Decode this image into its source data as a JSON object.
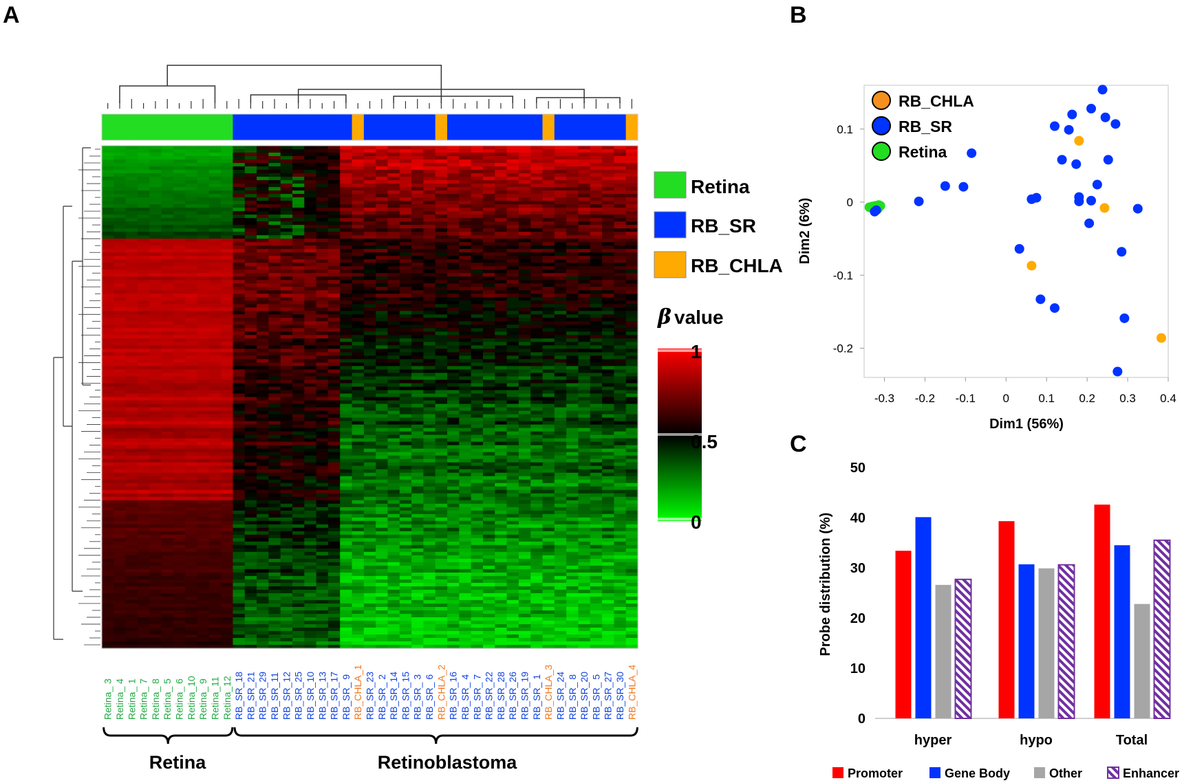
{
  "colors": {
    "retina": "#22dd22",
    "rb_sr": "#0033ff",
    "rb_chla": "#ffaa00",
    "rb_chla_label": "#ee7722",
    "retina_label": "#22aa44",
    "rb_sr_label": "#1144dd",
    "promoter": "#ff0000",
    "gene_body": "#0033ff",
    "other": "#a6a6a6",
    "enhancer": "#7030a0"
  },
  "panels": {
    "a": "A",
    "b": "B",
    "c": "C"
  },
  "chart_data": [
    {
      "panel": "A",
      "type": "heatmap",
      "title": "",
      "samples": [
        {
          "name": "Retina_ 3",
          "group": "Retina"
        },
        {
          "name": "Retina_ 4",
          "group": "Retina"
        },
        {
          "name": "Retina_ 1",
          "group": "Retina"
        },
        {
          "name": "Retina_ 7",
          "group": "Retina"
        },
        {
          "name": "Retina_ 8",
          "group": "Retina"
        },
        {
          "name": "Retina_ 5",
          "group": "Retina"
        },
        {
          "name": "Retina_ 6",
          "group": "Retina"
        },
        {
          "name": "Retina_10",
          "group": "Retina"
        },
        {
          "name": "Retina_ 9",
          "group": "Retina"
        },
        {
          "name": "Retina_11",
          "group": "Retina"
        },
        {
          "name": "Retina_12",
          "group": "Retina"
        },
        {
          "name": "RB_SR_18",
          "group": "RB_SR"
        },
        {
          "name": "RB_SR_21",
          "group": "RB_SR"
        },
        {
          "name": "RB_SR_29",
          "group": "RB_SR"
        },
        {
          "name": "RB_SR_11",
          "group": "RB_SR"
        },
        {
          "name": "RB_SR_12",
          "group": "RB_SR"
        },
        {
          "name": "RB_SR_25",
          "group": "RB_SR"
        },
        {
          "name": "RB_SR_10",
          "group": "RB_SR"
        },
        {
          "name": "RB_SR_13",
          "group": "RB_SR"
        },
        {
          "name": "RB_SR_17",
          "group": "RB_SR"
        },
        {
          "name": "RB_SR_ 9",
          "group": "RB_SR"
        },
        {
          "name": "RB_CHLA_1",
          "group": "RB_CHLA"
        },
        {
          "name": "RB_SR_23",
          "group": "RB_SR"
        },
        {
          "name": "RB_SR_ 2",
          "group": "RB_SR"
        },
        {
          "name": "RB_SR_14",
          "group": "RB_SR"
        },
        {
          "name": "RB_SR_15",
          "group": "RB_SR"
        },
        {
          "name": "RB_SR_ 3",
          "group": "RB_SR"
        },
        {
          "name": "RB_SR_ 6",
          "group": "RB_SR"
        },
        {
          "name": "RB_CHLA_2",
          "group": "RB_CHLA"
        },
        {
          "name": "RB_SR_16",
          "group": "RB_SR"
        },
        {
          "name": "RB_SR_ 4",
          "group": "RB_SR"
        },
        {
          "name": "RB_SR_ 7",
          "group": "RB_SR"
        },
        {
          "name": "RB_SR_22",
          "group": "RB_SR"
        },
        {
          "name": "RB_SR_28",
          "group": "RB_SR"
        },
        {
          "name": "RB_SR_26",
          "group": "RB_SR"
        },
        {
          "name": "RB_SR_19",
          "group": "RB_SR"
        },
        {
          "name": "RB_SR_ 1",
          "group": "RB_SR"
        },
        {
          "name": "RB_CHLA_3",
          "group": "RB_CHLA"
        },
        {
          "name": "RB_SR_24",
          "group": "RB_SR"
        },
        {
          "name": "RB_SR_ 8",
          "group": "RB_SR"
        },
        {
          "name": "RB_SR_20",
          "group": "RB_SR"
        },
        {
          "name": "RB_SR_ 5",
          "group": "RB_SR"
        },
        {
          "name": "RB_SR_27",
          "group": "RB_SR"
        },
        {
          "name": "RB_SR_30",
          "group": "RB_SR"
        },
        {
          "name": "RB_CHLA_4",
          "group": "RB_CHLA"
        }
      ],
      "legend": [
        {
          "label": "Retina",
          "group": "Retina"
        },
        {
          "label": "RB_SR",
          "group": "RB_SR"
        },
        {
          "label": "RB_CHLA",
          "group": "RB_CHLA"
        }
      ],
      "colorbar": {
        "prefix": "β",
        "title": " value",
        "ticks": [
          "1",
          "0.5",
          "0"
        ],
        "range": [
          0,
          1
        ],
        "colors": [
          "#00ff00",
          "#000000",
          "#ff0000"
        ]
      },
      "groups": [
        {
          "label": "Retina",
          "from": 0,
          "to": 10
        },
        {
          "label": "Retinoblastoma",
          "from": 11,
          "to": 44
        }
      ]
    },
    {
      "panel": "B",
      "type": "scatter",
      "xlabel": "Dim1 (56%)",
      "ylabel": "Dim2 (6%)",
      "xlim": [
        -0.35,
        0.4
      ],
      "ylim": [
        -0.24,
        0.16
      ],
      "xticks": [
        -0.3,
        -0.2,
        -0.1,
        0,
        0.1,
        0.2,
        0.3,
        0.4
      ],
      "xtick_labels": [
        "-0.3",
        "-0.2",
        "-0.1",
        "0",
        "0.1",
        "0.2",
        "0.3",
        "0.4"
      ],
      "yticks": [
        -0.2,
        -0.1,
        0,
        0.1
      ],
      "ytick_labels": [
        "-0.2",
        "-0.1",
        "0",
        "0.1"
      ],
      "legend": [
        {
          "label": "RB_CHLA",
          "group": "RB_CHLA"
        },
        {
          "label": "RB_SR",
          "group": "RB_SR"
        },
        {
          "label": "Retina",
          "group": "Retina"
        }
      ],
      "series": [
        {
          "name": "Retina",
          "points": [
            [
              -0.337,
              -0.007
            ],
            [
              -0.333,
              -0.007
            ],
            [
              -0.33,
              -0.006
            ],
            [
              -0.326,
              -0.006
            ],
            [
              -0.322,
              -0.005
            ],
            [
              -0.318,
              -0.006
            ],
            [
              -0.314,
              -0.004
            ],
            [
              -0.31,
              -0.005
            ],
            [
              -0.32,
              -0.008
            ],
            [
              -0.316,
              -0.009
            ],
            [
              -0.312,
              -0.006
            ]
          ]
        },
        {
          "name": "RB_SR",
          "points": [
            [
              -0.324,
              -0.013
            ],
            [
              -0.32,
              -0.011
            ],
            [
              -0.215,
              0.001
            ],
            [
              -0.15,
              0.022
            ],
            [
              -0.105,
              0.021
            ],
            [
              -0.085,
              0.067
            ],
            [
              0.033,
              -0.064
            ],
            [
              0.063,
              0.004
            ],
            [
              0.075,
              0.006
            ],
            [
              0.085,
              -0.133
            ],
            [
              0.12,
              -0.145
            ],
            [
              0.12,
              0.104
            ],
            [
              0.138,
              0.058
            ],
            [
              0.155,
              0.099
            ],
            [
              0.163,
              0.12
            ],
            [
              0.173,
              0.052
            ],
            [
              0.18,
              0.007
            ],
            [
              0.205,
              -0.029
            ],
            [
              0.21,
              0.128
            ],
            [
              0.225,
              0.024
            ],
            [
              0.238,
              0.154
            ],
            [
              0.245,
              0.116
            ],
            [
              0.252,
              0.058
            ],
            [
              0.27,
              0.107
            ],
            [
              0.275,
              -0.232
            ],
            [
              0.285,
              -0.068
            ],
            [
              0.292,
              -0.159
            ],
            [
              0.325,
              -0.009
            ],
            [
              0.21,
              0.002
            ],
            [
              0.18,
              0.001
            ]
          ]
        },
        {
          "name": "RB_CHLA",
          "points": [
            [
              0.063,
              -0.087
            ],
            [
              0.18,
              0.084
            ],
            [
              0.243,
              -0.008
            ],
            [
              0.383,
              -0.186
            ]
          ]
        }
      ]
    },
    {
      "panel": "C",
      "type": "bar",
      "ylabel": "Probe distribution (%)",
      "xlabel": "",
      "ylim": [
        0,
        50
      ],
      "yticks": [
        "0",
        "10",
        "20",
        "30",
        "40",
        "50"
      ],
      "categories": [
        "hyper",
        "hypo",
        "Total"
      ],
      "series": [
        {
          "name": "Promoter",
          "values": [
            33.4,
            39.3,
            42.6
          ]
        },
        {
          "name": "Gene Body",
          "values": [
            40.1,
            30.7,
            34.5
          ]
        },
        {
          "name": "Other",
          "values": [
            26.6,
            29.9,
            22.8
          ]
        },
        {
          "name": "Enhancer",
          "values": [
            27.7,
            30.6,
            35.5
          ]
        }
      ]
    }
  ]
}
